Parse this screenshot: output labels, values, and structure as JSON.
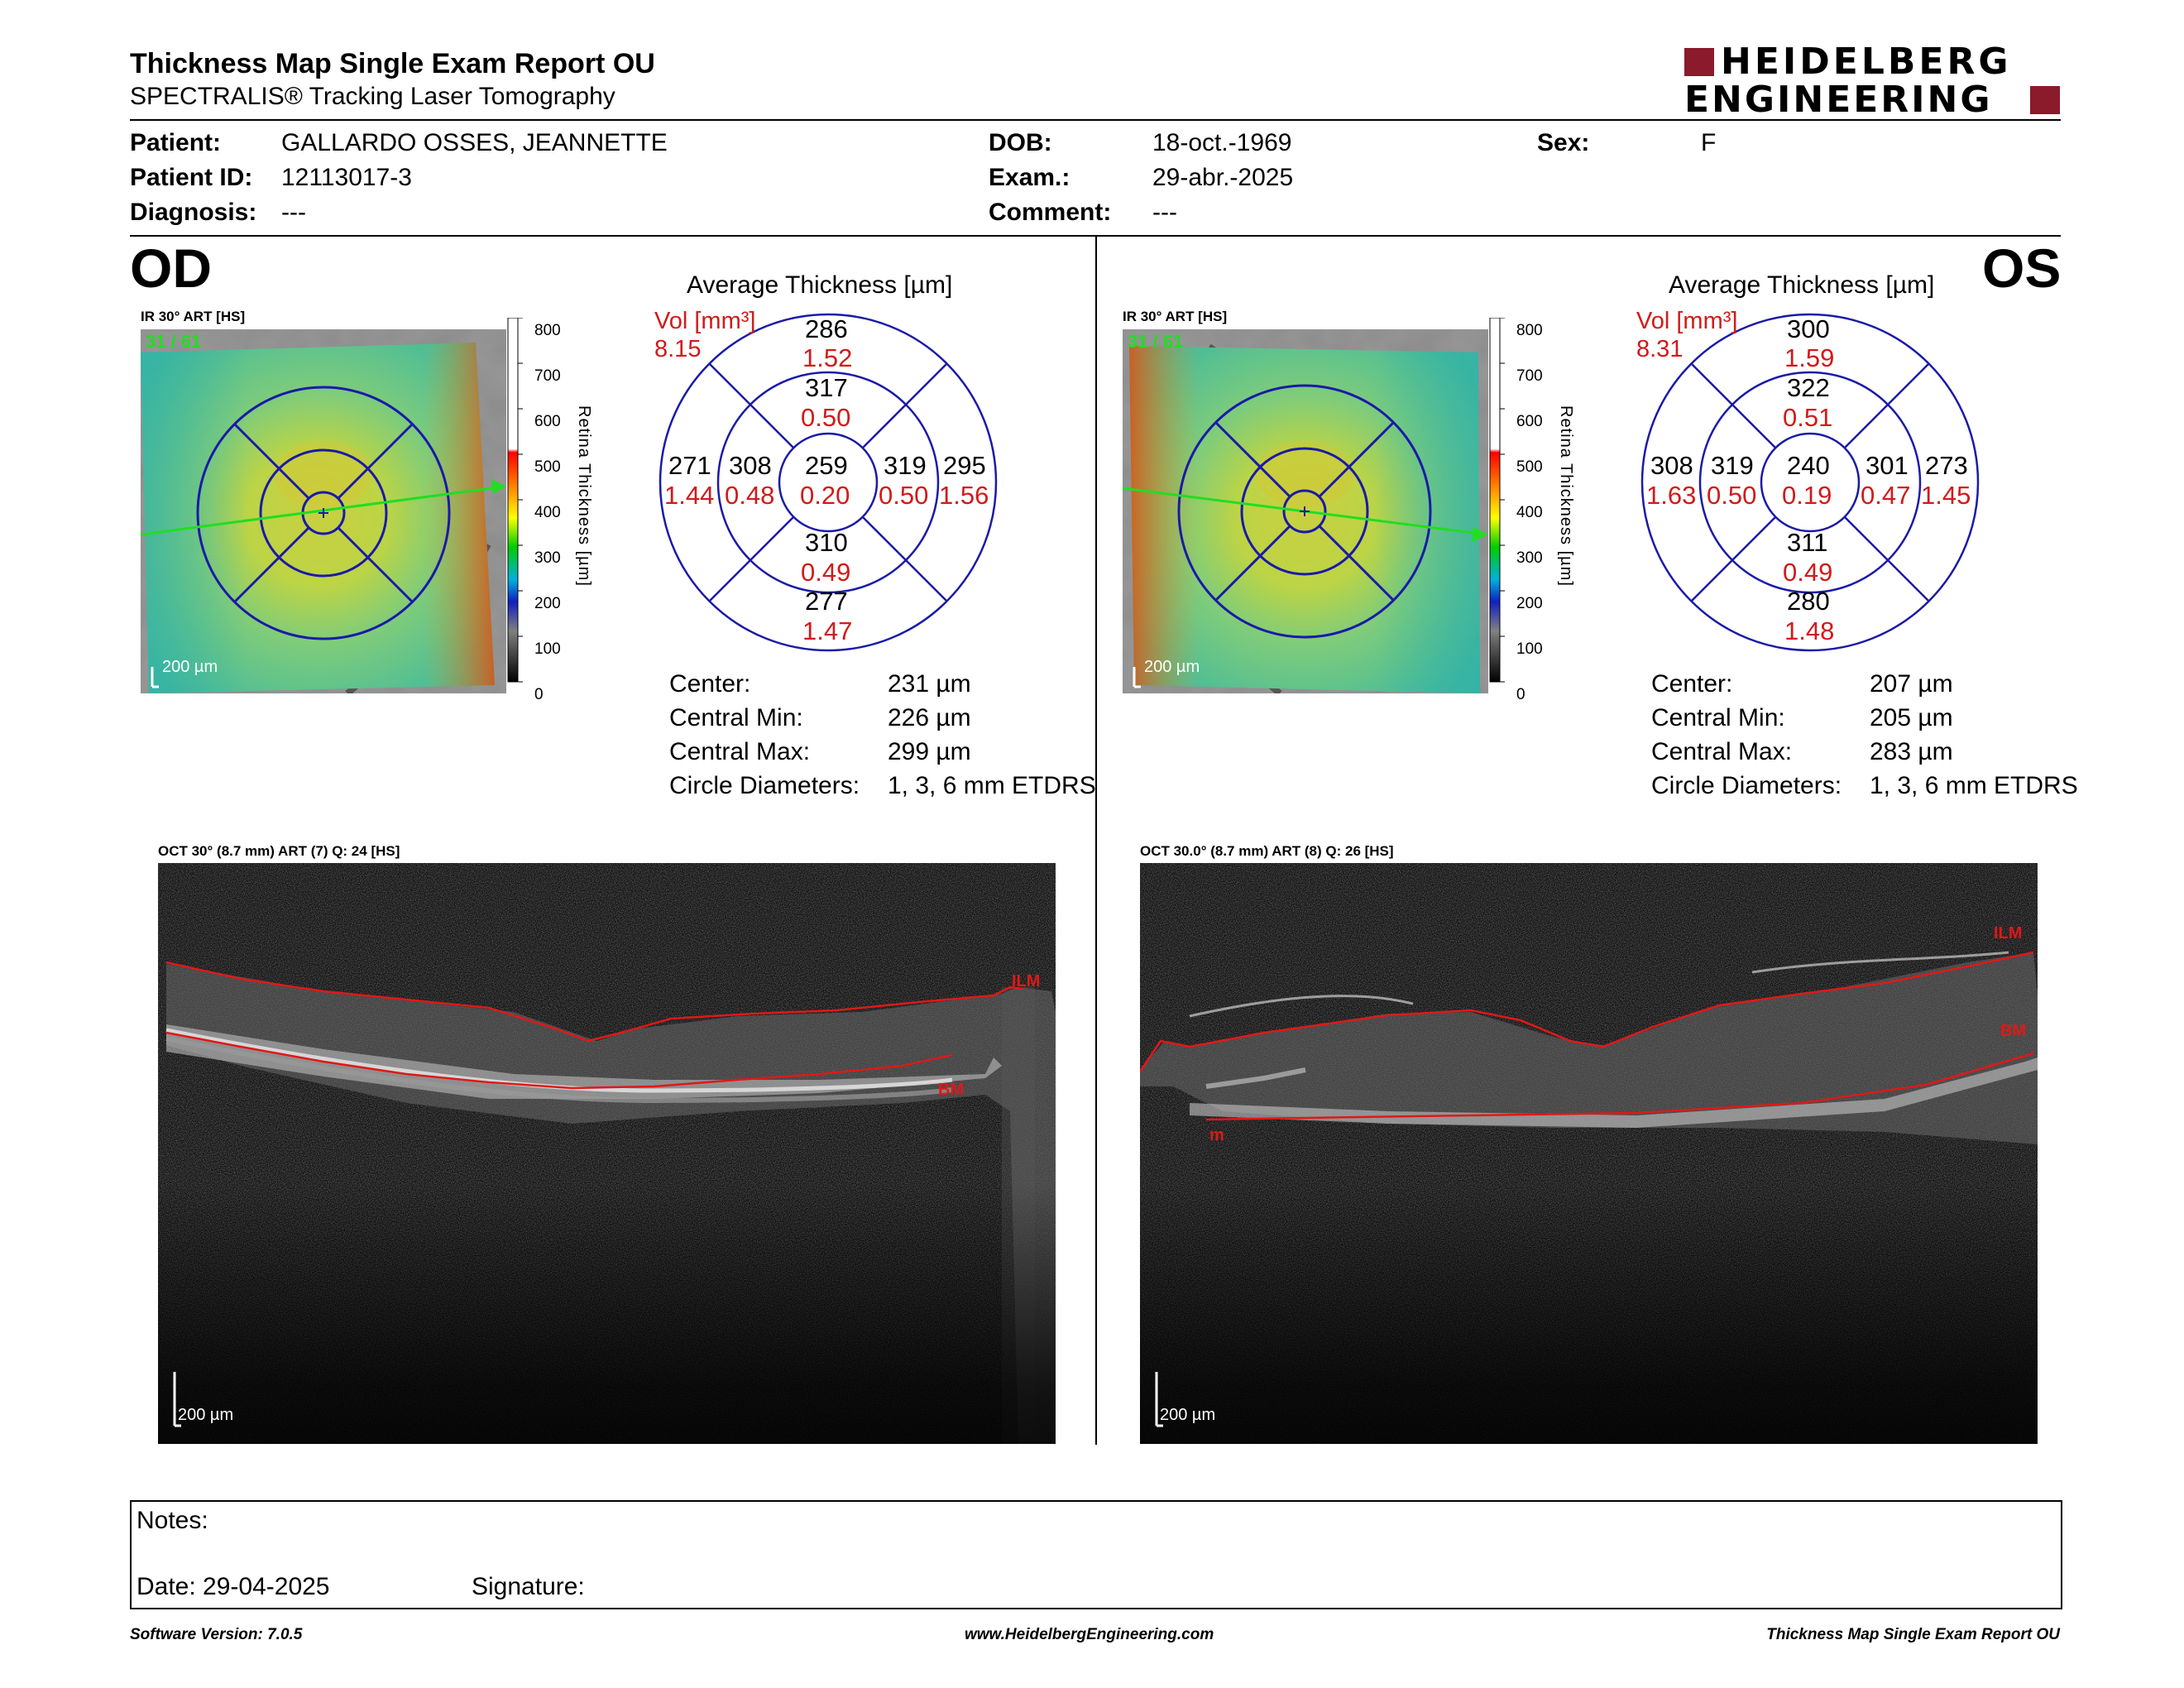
{
  "header": {
    "title": "Thickness Map Single Exam Report OU",
    "subtitle": "SPECTRALIS® Tracking Laser Tomography",
    "logo_line1": "HEIDELBERG",
    "logo_line2": "ENGINEERING",
    "logo_color": "#8b1a2b"
  },
  "patient": {
    "patient_label": "Patient:",
    "patient_value": "GALLARDO OSSES, JEANNETTE",
    "id_label": "Patient ID:",
    "id_value": "12113017-3",
    "diagnosis_label": "Diagnosis:",
    "diagnosis_value": "---",
    "dob_label": "DOB:",
    "dob_value": "18-oct.-1969",
    "exam_label": "Exam.:",
    "exam_value": "29-abr.-2025",
    "comment_label": "Comment:",
    "comment_value": "---",
    "sex_label": "Sex:",
    "sex_value": "F"
  },
  "od": {
    "eye_label": "OD",
    "ir_label": "IR 30° ART [HS]",
    "ir_quality": "31 / 61",
    "scale_label": "200 µm",
    "colorbar_ticks": [
      "800",
      "700",
      "600",
      "500",
      "400",
      "300",
      "200",
      "100",
      "0"
    ],
    "colorbar_title": "Retina Thickness [µm]",
    "avg_title": "Average Thickness [µm]",
    "vol_label": "Vol [mm³]",
    "vol_value": "8.15",
    "grid": {
      "outer_top": "286",
      "outer_top_vol": "1.52",
      "inner_top": "317",
      "inner_top_vol": "0.50",
      "outer_left": "271",
      "outer_left_vol": "1.44",
      "inner_left": "308",
      "inner_left_vol": "0.48",
      "center": "259",
      "center_vol": "0.20",
      "inner_right": "319",
      "inner_right_vol": "0.50",
      "outer_right": "295",
      "outer_right_vol": "1.56",
      "inner_bottom": "310",
      "inner_bottom_vol": "0.49",
      "outer_bottom": "277",
      "outer_bottom_vol": "1.47"
    },
    "stats": {
      "center_label": "Center:",
      "center_value": "231 µm",
      "min_label": "Central Min:",
      "min_value": "226 µm",
      "max_label": "Central Max:",
      "max_value": "299 µm",
      "diam_label": "Circle Diameters:",
      "diam_value": "1, 3, 6 mm ETDRS"
    },
    "oct_label": "OCT 30° (8.7 mm) ART (7) Q: 24 [HS]",
    "oct_scale": "200 µm",
    "ilm_label": "ILM",
    "bm_label": "BM"
  },
  "os": {
    "eye_label": "OS",
    "ir_label": "IR 30° ART [HS]",
    "ir_quality": "31 / 61",
    "scale_label": "200 µm",
    "colorbar_ticks": [
      "800",
      "700",
      "600",
      "500",
      "400",
      "300",
      "200",
      "100",
      "0"
    ],
    "colorbar_title": "Retina Thickness [µm]",
    "avg_title": "Average Thickness [µm]",
    "vol_label": "Vol [mm³]",
    "vol_value": "8.31",
    "grid": {
      "outer_top": "300",
      "outer_top_vol": "1.59",
      "inner_top": "322",
      "inner_top_vol": "0.51",
      "outer_left": "308",
      "outer_left_vol": "1.63",
      "inner_left": "319",
      "inner_left_vol": "0.50",
      "center": "240",
      "center_vol": "0.19",
      "inner_right": "301",
      "inner_right_vol": "0.47",
      "outer_right": "273",
      "outer_right_vol": "1.45",
      "inner_bottom": "311",
      "inner_bottom_vol": "0.49",
      "outer_bottom": "280",
      "outer_bottom_vol": "1.48"
    },
    "stats": {
      "center_label": "Center:",
      "center_value": "207 µm",
      "min_label": "Central Min:",
      "min_value": "205 µm",
      "max_label": "Central Max:",
      "max_value": "283 µm",
      "diam_label": "Circle Diameters:",
      "diam_value": "1, 3, 6 mm ETDRS"
    },
    "oct_label": "OCT 30.0° (8.7 mm) ART (8) Q: 26 [HS]",
    "oct_scale": "200 µm",
    "ilm_label": "ILM",
    "bm_label": "BM",
    "bm_marker": "m"
  },
  "notes": {
    "notes_label": "Notes:",
    "date_label": "Date: 29-04-2025",
    "signature_label": "Signature:"
  },
  "footer": {
    "version": "Software Version: 7.0.5",
    "website": "www.HeidelbergEngineering.com",
    "report_name": "Thickness Map Single Exam Report OU"
  },
  "colors": {
    "grid_blue": "#1a1aa8",
    "value_red": "#d21a1a",
    "segmentation_red": "#e01818",
    "scan_line_green": "#22dd22"
  }
}
